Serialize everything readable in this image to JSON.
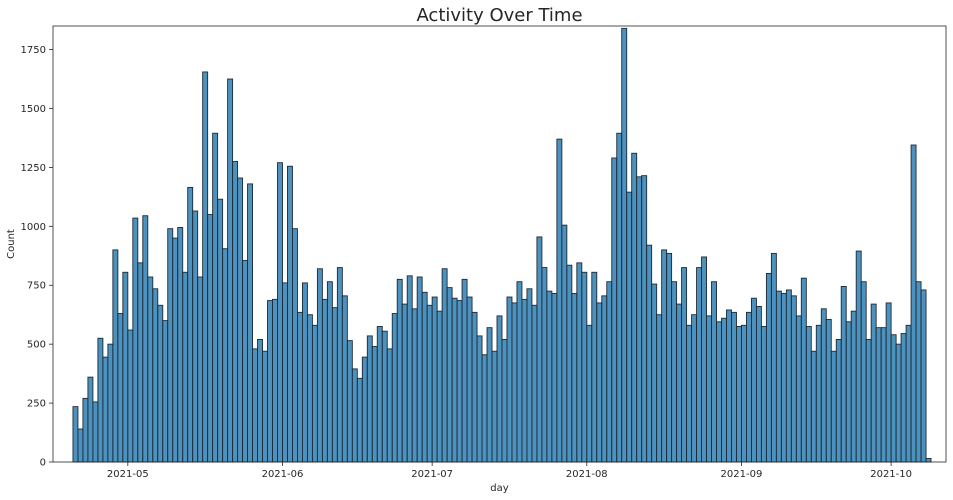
{
  "chart_data": {
    "type": "bar",
    "title": "Activity Over Time",
    "xlabel": "day",
    "ylabel": "Count",
    "ylim": [
      0,
      1850
    ],
    "xlim": [
      "2021-04-16",
      "2021-10-12"
    ],
    "y_ticks": [
      0,
      250,
      500,
      750,
      1000,
      1250,
      1500,
      1750
    ],
    "x_ticks": [
      "2021-05",
      "2021-06",
      "2021-07",
      "2021-08",
      "2021-09",
      "2021-10"
    ],
    "bar_color": "#2e7fb3",
    "bar_edge_color": "#1c2a36",
    "grid": false,
    "x_start": "2021-04-20",
    "values": [
      235,
      140,
      270,
      360,
      255,
      525,
      445,
      500,
      900,
      630,
      805,
      560,
      1035,
      845,
      1045,
      785,
      735,
      665,
      600,
      990,
      950,
      995,
      805,
      1165,
      1065,
      785,
      1655,
      1050,
      1395,
      1115,
      905,
      1625,
      1275,
      1205,
      855,
      1180,
      480,
      520,
      470,
      685,
      690,
      1270,
      760,
      1255,
      990,
      635,
      760,
      625,
      580,
      820,
      690,
      765,
      655,
      825,
      705,
      515,
      395,
      355,
      445,
      535,
      490,
      575,
      555,
      480,
      630,
      775,
      670,
      790,
      650,
      785,
      720,
      665,
      700,
      640,
      820,
      740,
      695,
      685,
      775,
      700,
      635,
      535,
      455,
      570,
      470,
      620,
      520,
      700,
      675,
      765,
      690,
      735,
      665,
      955,
      825,
      725,
      715,
      1370,
      1005,
      835,
      715,
      845,
      805,
      580,
      805,
      675,
      705,
      765,
      1290,
      1395,
      1840,
      1145,
      1310,
      1210,
      1215,
      920,
      755,
      625,
      900,
      885,
      765,
      670,
      825,
      580,
      625,
      825,
      870,
      620,
      765,
      595,
      610,
      645,
      635,
      575,
      580,
      635,
      695,
      660,
      575,
      800,
      885,
      725,
      715,
      730,
      705,
      620,
      780,
      575,
      470,
      580,
      650,
      605,
      470,
      520,
      745,
      595,
      640,
      895,
      765,
      520,
      670,
      570,
      570,
      675,
      540,
      500,
      545,
      580,
      1345,
      765,
      730,
      15
    ]
  }
}
